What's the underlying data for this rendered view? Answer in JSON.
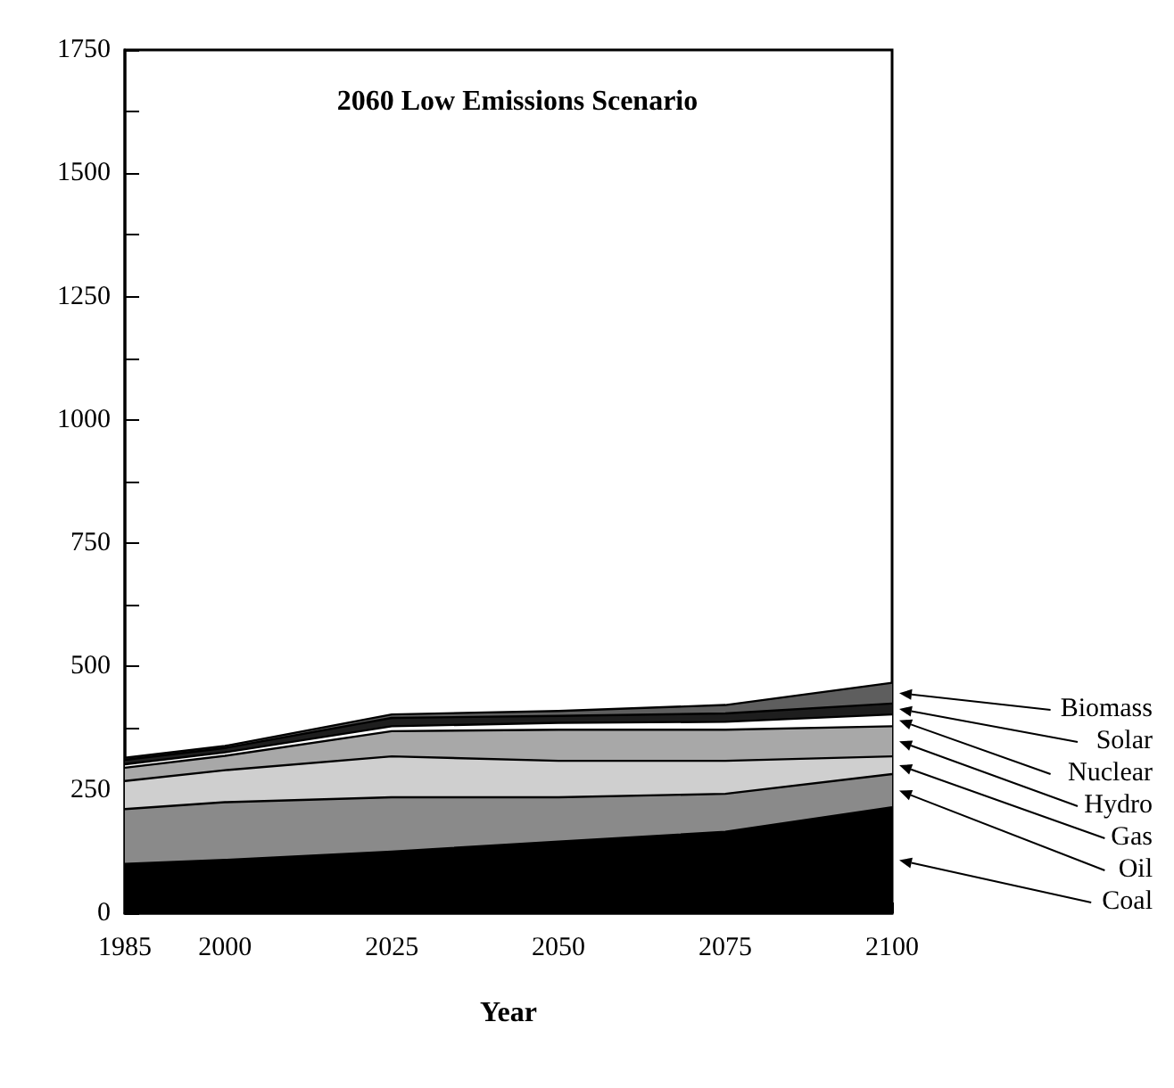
{
  "chart_data": {
    "type": "area",
    "title": "2060 Low Emissions Scenario",
    "xlabel": "Year",
    "stacked": true,
    "x": [
      1985,
      2000,
      2025,
      2050,
      2075,
      2100
    ],
    "series": [
      {
        "name": "Coal",
        "color": "#000000",
        "values": [
          100,
          108,
          125,
          145,
          165,
          215
        ]
      },
      {
        "name": "Oil",
        "color": "#8a8a8a",
        "values": [
          111,
          117,
          110,
          90,
          77,
          67
        ]
      },
      {
        "name": "Gas",
        "color": "#cfcfcf",
        "values": [
          57,
          65,
          83,
          74,
          67,
          36
        ]
      },
      {
        "name": "Hydro",
        "color": "#a8a8a8",
        "values": [
          27,
          29,
          51,
          63,
          63,
          61
        ]
      },
      {
        "name": "Nuclear",
        "color": "#ffffff",
        "values": [
          7,
          7,
          10,
          14,
          16,
          24
        ]
      },
      {
        "name": "Solar",
        "color": "#1e1e1e",
        "values": [
          9,
          9,
          17,
          14,
          17,
          22
        ]
      },
      {
        "name": "Biomass",
        "color": "#5e5e5e",
        "values": [
          4,
          4,
          7,
          10,
          17,
          42
        ]
      }
    ],
    "xlim": [
      1985,
      2100
    ],
    "xticks": [
      1985,
      2000,
      2025,
      2050,
      2075,
      2100
    ],
    "ylim": [
      0,
      1750
    ],
    "yticks": [
      0,
      {
        "value": 125,
        "label": null
      },
      250,
      {
        "value": 375,
        "label": null
      },
      500,
      {
        "value": 625,
        "label": null
      },
      750,
      {
        "value": 875,
        "label": null
      },
      1000,
      {
        "value": 1125,
        "label": null
      },
      1250,
      {
        "value": 1375,
        "label": null
      },
      1500,
      {
        "value": 1625,
        "label": null
      },
      1750
    ],
    "grid": false,
    "legend": "right"
  }
}
